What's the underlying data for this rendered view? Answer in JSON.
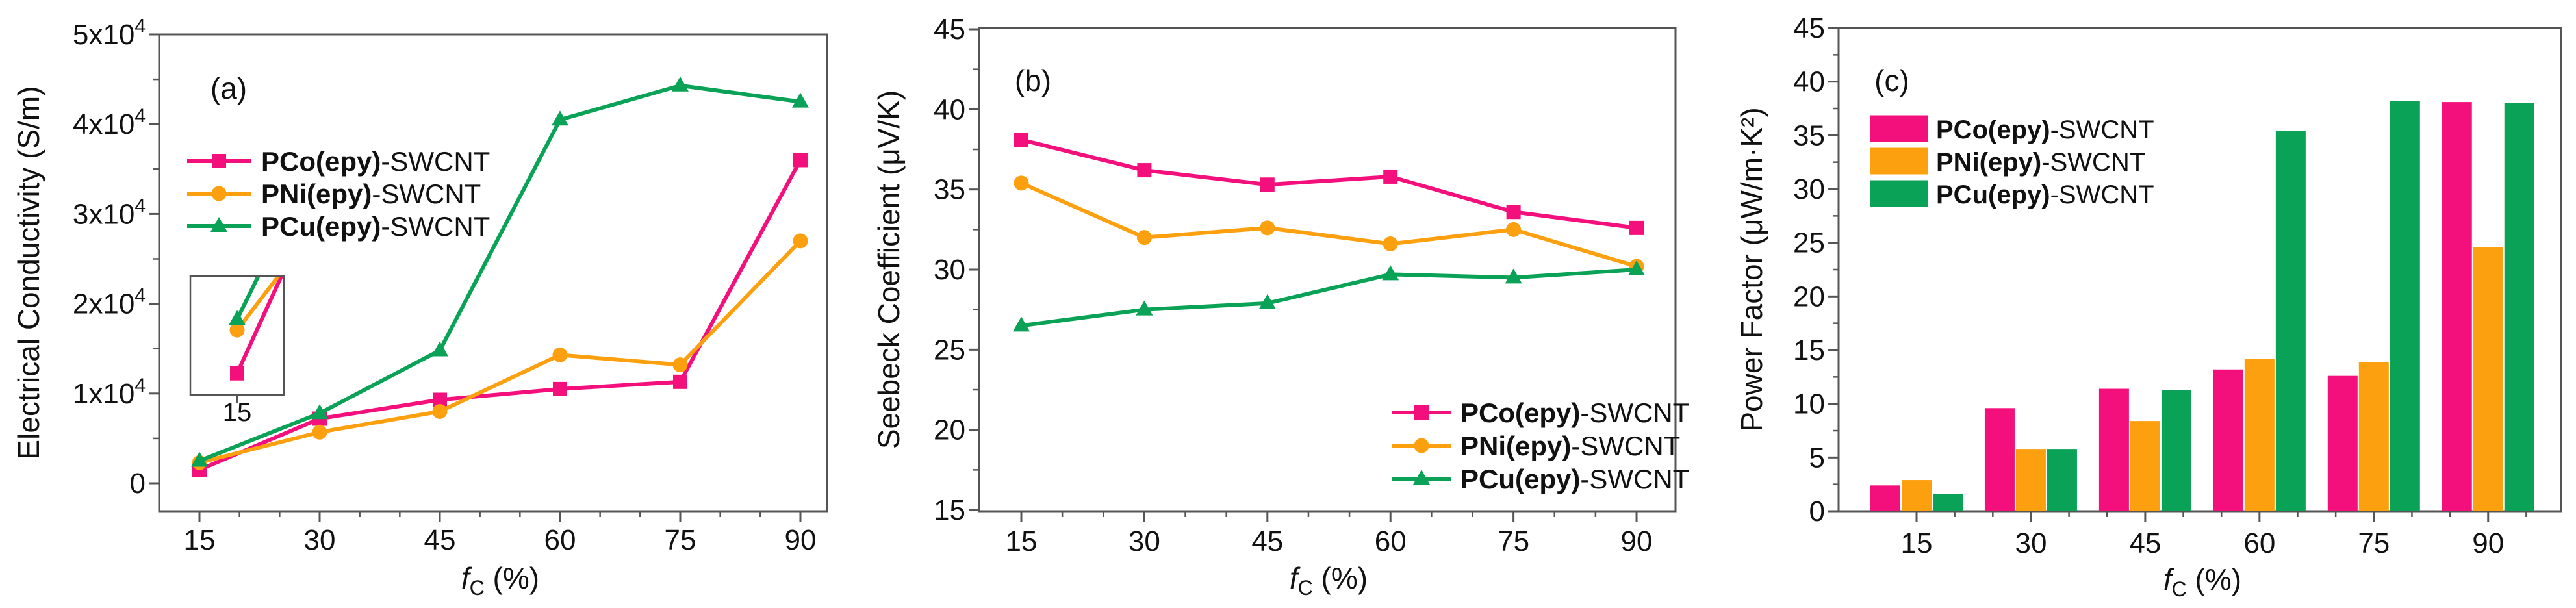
{
  "figure": {
    "colors": {
      "axis": "#555555",
      "text": "#111111",
      "background": "#ffffff"
    }
  },
  "chart_data": [
    {
      "id": "a",
      "panel_label": "(a)",
      "type": "line",
      "xlabel": {
        "italic": "f",
        "sub": "C",
        "rest": " (%)"
      },
      "ylabel": "Electrical Conductivity (S/m)",
      "x": [
        15,
        30,
        45,
        60,
        75,
        90
      ],
      "xlim": [
        10,
        95
      ],
      "ylim": [
        0,
        50000
      ],
      "yticks": [
        {
          "v": 0,
          "text": "0"
        },
        {
          "v": 10000,
          "text": "1x10",
          "sup": "4"
        },
        {
          "v": 20000,
          "text": "2x10",
          "sup": "4"
        },
        {
          "v": 30000,
          "text": "3x10",
          "sup": "4"
        },
        {
          "v": 40000,
          "text": "4x10",
          "sup": "4"
        },
        {
          "v": 50000,
          "text": "5x10",
          "sup": "4"
        }
      ],
      "grid": "off",
      "legend_position": "upper-left",
      "series": [
        {
          "name": "PCo(epy)-SWCNT",
          "name_bold": "PCo(epy)",
          "name_rest": "-SWCNT",
          "marker": "square",
          "color": "#F4107C",
          "values": [
            1500,
            7200,
            9300,
            10500,
            11300,
            36000
          ]
        },
        {
          "name": "PNi(epy)-SWCNT",
          "name_bold": "PNi(epy)",
          "name_rest": "-SWCNT",
          "marker": "circle",
          "color": "#FCA010",
          "values": [
            2300,
            5700,
            8000,
            14300,
            13200,
            27000
          ]
        },
        {
          "name": "PCu(epy)-SWCNT",
          "name_bold": "PCu(epy)",
          "name_rest": "-SWCNT",
          "marker": "triangle",
          "color": "#09A257",
          "values": [
            2500,
            7800,
            14800,
            40500,
            44300,
            42500
          ]
        }
      ],
      "inset": {
        "xtick_label": "15",
        "x_at": 15,
        "x_next": 30,
        "x_domain": [
          10,
          20
        ],
        "y_domain": [
          1100,
          3300
        ],
        "values_at_15": [
          1500,
          2300,
          2500
        ],
        "values_at_30": [
          7200,
          5700,
          7800
        ]
      }
    },
    {
      "id": "b",
      "panel_label": "(b)",
      "type": "line",
      "xlabel": {
        "italic": "f",
        "sub": "C",
        "rest": " (%)"
      },
      "ylabel": "Seebeck Coefficient (μV/K)",
      "x": [
        15,
        30,
        45,
        60,
        75,
        90
      ],
      "xlim": [
        10,
        95
      ],
      "ylim": [
        15,
        45
      ],
      "yticks": [
        {
          "v": 15,
          "text": "15"
        },
        {
          "v": 20,
          "text": "20"
        },
        {
          "v": 25,
          "text": "25"
        },
        {
          "v": 30,
          "text": "30"
        },
        {
          "v": 35,
          "text": "35"
        },
        {
          "v": 40,
          "text": "40"
        },
        {
          "v": 45,
          "text": "45"
        }
      ],
      "grid": "off",
      "legend_position": "lower-right",
      "series": [
        {
          "name": "PCo(epy)-SWCNT",
          "name_bold": "PCo(epy)",
          "name_rest": "-SWCNT",
          "marker": "square",
          "color": "#F4107C",
          "values": [
            38.1,
            36.2,
            35.3,
            35.8,
            33.6,
            32.6
          ]
        },
        {
          "name": "PNi(epy)-SWCNT",
          "name_bold": "PNi(epy)",
          "name_rest": "-SWCNT",
          "marker": "circle",
          "color": "#FCA010",
          "values": [
            35.4,
            32.0,
            32.6,
            31.6,
            32.5,
            30.2
          ]
        },
        {
          "name": "PCu(epy)-SWCNT",
          "name_bold": "PCu(epy)",
          "name_rest": "-SWCNT",
          "marker": "triangle",
          "color": "#09A257",
          "values": [
            26.5,
            27.5,
            27.9,
            29.7,
            29.5,
            30.0
          ]
        }
      ]
    },
    {
      "id": "c",
      "panel_label": "(c)",
      "type": "bar",
      "xlabel": {
        "italic": "f",
        "sub": "C",
        "rest": " (%)"
      },
      "ylabel": "Power Factor (μW/m·K²)",
      "x": [
        15,
        30,
        45,
        60,
        75,
        90
      ],
      "xlim": [
        10,
        95
      ],
      "ylim": [
        0,
        45
      ],
      "yticks": [
        {
          "v": 0,
          "text": "0"
        },
        {
          "v": 5,
          "text": "5"
        },
        {
          "v": 10,
          "text": "10"
        },
        {
          "v": 15,
          "text": "15"
        },
        {
          "v": 20,
          "text": "20"
        },
        {
          "v": 25,
          "text": "25"
        },
        {
          "v": 30,
          "text": "30"
        },
        {
          "v": 35,
          "text": "35"
        },
        {
          "v": 40,
          "text": "40"
        },
        {
          "v": 45,
          "text": "45"
        }
      ],
      "grid": "off",
      "legend_position": "upper-left",
      "series": [
        {
          "name": "PCo(epy)-SWCNT",
          "name_bold": "PCo(epy)",
          "name_rest": "-SWCNT",
          "marker": "rect",
          "color": "#F4107C",
          "values": [
            2.4,
            9.6,
            11.4,
            13.2,
            12.6,
            38.1
          ]
        },
        {
          "name": "PNi(epy)-SWCNT",
          "name_bold": "PNi(epy)",
          "name_rest": "-SWCNT",
          "marker": "rect",
          "color": "#FCA010",
          "values": [
            2.9,
            5.8,
            8.4,
            14.2,
            13.9,
            24.6
          ]
        },
        {
          "name": "PCu(epy)-SWCNT",
          "name_bold": "PCu(epy)",
          "name_rest": "-SWCNT",
          "marker": "rect",
          "color": "#09A257",
          "values": [
            1.6,
            5.8,
            11.3,
            35.4,
            38.2,
            38.0
          ]
        }
      ]
    }
  ]
}
